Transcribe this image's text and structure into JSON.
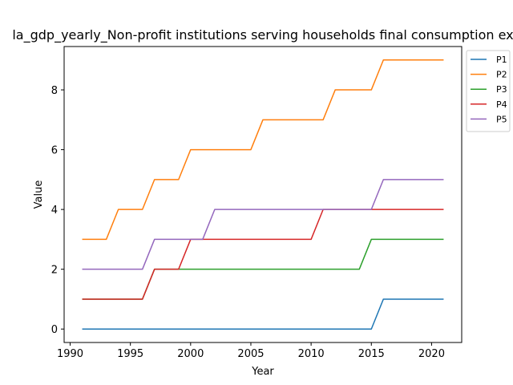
{
  "chart_data": {
    "type": "line",
    "title": "la_gdp_yearly_Non-profit institutions serving households final consumption ex",
    "xlabel": "Year",
    "ylabel": "Value",
    "xlim": [
      1989.5,
      2022.5
    ],
    "ylim": [
      -0.45,
      9.45
    ],
    "xticks": [
      1990,
      1995,
      2000,
      2005,
      2010,
      2015,
      2020
    ],
    "yticks": [
      0,
      2,
      4,
      6,
      8
    ],
    "legend_position": "upper-right-outside",
    "grid": false,
    "x": [
      1991,
      1992,
      1993,
      1994,
      1995,
      1996,
      1997,
      1998,
      1999,
      2000,
      2001,
      2002,
      2003,
      2004,
      2005,
      2006,
      2007,
      2008,
      2009,
      2010,
      2011,
      2012,
      2013,
      2014,
      2015,
      2016,
      2017,
      2018,
      2019,
      2020,
      2021
    ],
    "series": [
      {
        "name": "P1",
        "color": "#1f77b4",
        "values": [
          0,
          0,
          0,
          0,
          0,
          0,
          0,
          0,
          0,
          0,
          0,
          0,
          0,
          0,
          0,
          0,
          0,
          0,
          0,
          0,
          0,
          0,
          0,
          0,
          0,
          1,
          1,
          1,
          1,
          1,
          1
        ]
      },
      {
        "name": "P2",
        "color": "#ff7f0e",
        "values": [
          3,
          3,
          3,
          4,
          4,
          4,
          5,
          5,
          5,
          6,
          6,
          6,
          6,
          6,
          6,
          7,
          7,
          7,
          7,
          7,
          7,
          8,
          8,
          8,
          8,
          9,
          9,
          9,
          9,
          9,
          9
        ]
      },
      {
        "name": "P3",
        "color": "#2ca02c",
        "values": [
          1,
          1,
          1,
          1,
          1,
          1,
          2,
          2,
          2,
          2,
          2,
          2,
          2,
          2,
          2,
          2,
          2,
          2,
          2,
          2,
          2,
          2,
          2,
          2,
          3,
          3,
          3,
          3,
          3,
          3,
          3
        ]
      },
      {
        "name": "P4",
        "color": "#d62728",
        "values": [
          1,
          1,
          1,
          1,
          1,
          1,
          2,
          2,
          2,
          3,
          3,
          3,
          3,
          3,
          3,
          3,
          3,
          3,
          3,
          3,
          4,
          4,
          4,
          4,
          4,
          4,
          4,
          4,
          4,
          4,
          4
        ]
      },
      {
        "name": "P5",
        "color": "#9467bd",
        "values": [
          2,
          2,
          2,
          2,
          2,
          2,
          3,
          3,
          3,
          3,
          3,
          4,
          4,
          4,
          4,
          4,
          4,
          4,
          4,
          4,
          4,
          4,
          4,
          4,
          4,
          5,
          5,
          5,
          5,
          5,
          5
        ]
      }
    ]
  }
}
